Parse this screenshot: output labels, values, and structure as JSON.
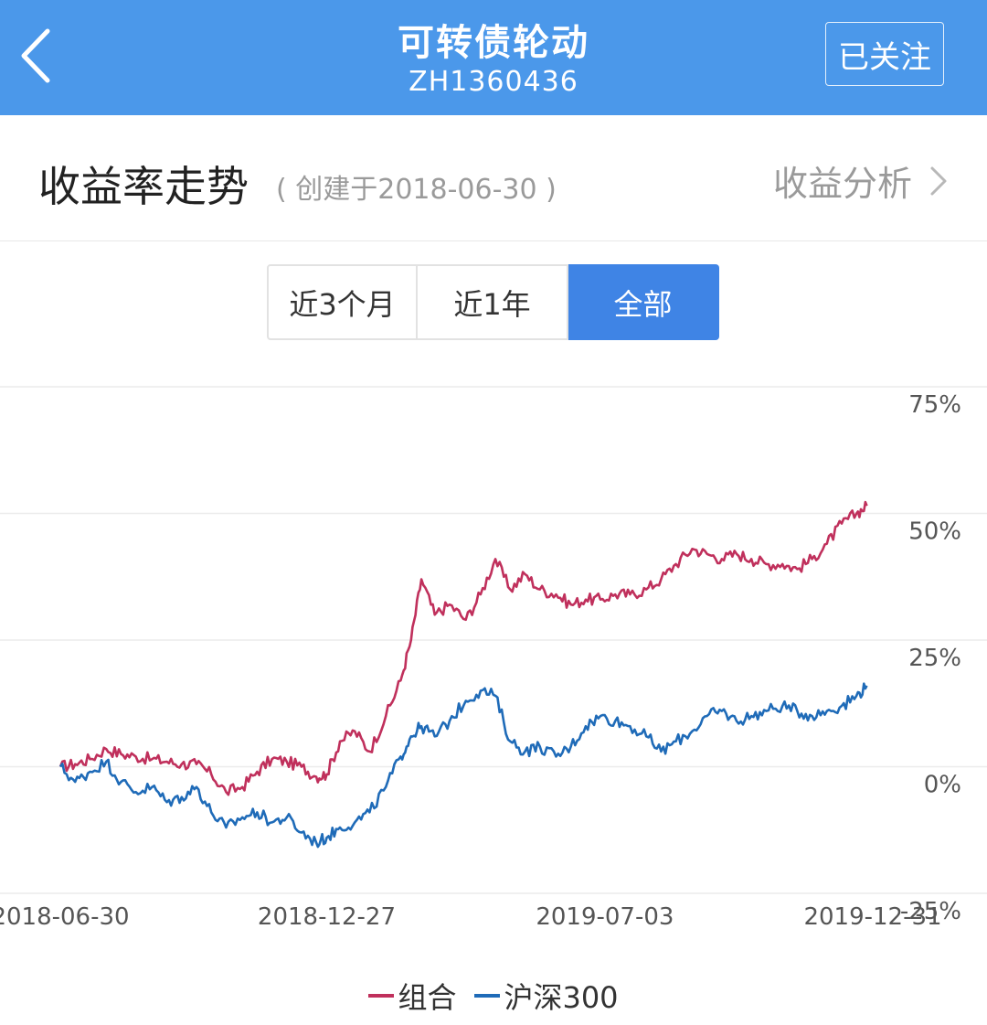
{
  "header": {
    "title": "可转债轮动",
    "subtitle": "ZH1360436",
    "follow_label": "已关注"
  },
  "section": {
    "title": "收益率走势",
    "created": "( 创建于2018-06-30 )",
    "analysis_label": "收益分析"
  },
  "range_tabs": [
    {
      "label": "近3个月",
      "active": false
    },
    {
      "label": "近1年",
      "active": false
    },
    {
      "label": "全部",
      "active": true
    }
  ],
  "icons": {
    "back": "chevron-left-icon",
    "analysis": "chevron-right-icon"
  },
  "colors": {
    "header_bg": "#4b98ea",
    "active_tab": "#3f84e5",
    "portfolio": "#c0305c",
    "benchmark": "#1f6bb8"
  },
  "chart_data": {
    "type": "line",
    "x_ticks": [
      "2018-06-30",
      "2018-12-27",
      "2019-07-03",
      "2019-12-31"
    ],
    "y_ticks": [
      "75%",
      "50%",
      "25%",
      "0%",
      "-25%"
    ],
    "ylim": [
      -25,
      75
    ],
    "xlim": [
      "2018-06-30",
      "2019-12-31"
    ],
    "grid": true,
    "legend_position": "bottom",
    "series": [
      {
        "name": "组合",
        "color": "#c0305c",
        "points": [
          [
            "2018-06-30",
            0
          ],
          [
            "2018-07-10",
            0.5
          ],
          [
            "2018-07-20",
            1.5
          ],
          [
            "2018-07-31",
            3.5
          ],
          [
            "2018-08-10",
            2.5
          ],
          [
            "2018-08-20",
            2.0
          ],
          [
            "2018-08-31",
            1.5
          ],
          [
            "2018-09-10",
            1.0
          ],
          [
            "2018-09-20",
            0.5
          ],
          [
            "2018-09-30",
            0.5
          ],
          [
            "2018-10-10",
            -1.5
          ],
          [
            "2018-10-20",
            -5
          ],
          [
            "2018-10-31",
            -4
          ],
          [
            "2018-11-10",
            -1
          ],
          [
            "2018-11-20",
            1.5
          ],
          [
            "2018-11-30",
            1
          ],
          [
            "2018-12-10",
            0
          ],
          [
            "2018-12-20",
            -2
          ],
          [
            "2018-12-27",
            -1.5
          ],
          [
            "2019-01-05",
            5
          ],
          [
            "2019-01-15",
            7
          ],
          [
            "2019-01-25",
            3
          ],
          [
            "2019-02-05",
            10
          ],
          [
            "2019-02-15",
            17
          ],
          [
            "2019-02-22",
            25
          ],
          [
            "2019-03-01",
            37
          ],
          [
            "2019-03-10",
            30
          ],
          [
            "2019-03-20",
            32
          ],
          [
            "2019-03-31",
            29
          ],
          [
            "2019-04-10",
            34
          ],
          [
            "2019-04-20",
            41
          ],
          [
            "2019-04-30",
            35
          ],
          [
            "2019-05-10",
            38
          ],
          [
            "2019-05-20",
            35
          ],
          [
            "2019-05-31",
            34
          ],
          [
            "2019-06-10",
            32
          ],
          [
            "2019-06-20",
            33
          ],
          [
            "2019-06-30",
            33
          ],
          [
            "2019-07-10",
            34
          ],
          [
            "2019-07-20",
            34
          ],
          [
            "2019-07-31",
            35
          ],
          [
            "2019-08-10",
            37
          ],
          [
            "2019-08-20",
            40
          ],
          [
            "2019-08-31",
            43
          ],
          [
            "2019-09-10",
            42
          ],
          [
            "2019-09-20",
            41
          ],
          [
            "2019-09-30",
            42
          ],
          [
            "2019-10-10",
            41
          ],
          [
            "2019-10-20",
            40
          ],
          [
            "2019-10-31",
            40
          ],
          [
            "2019-11-10",
            39
          ],
          [
            "2019-11-20",
            41
          ],
          [
            "2019-11-30",
            44
          ],
          [
            "2019-12-10",
            48
          ],
          [
            "2019-12-20",
            50
          ],
          [
            "2019-12-27",
            51.5
          ]
        ]
      },
      {
        "name": "沪深300",
        "color": "#1f6bb8",
        "points": [
          [
            "2018-06-30",
            0
          ],
          [
            "2018-07-10",
            -3
          ],
          [
            "2018-07-20",
            -1
          ],
          [
            "2018-07-31",
            1
          ],
          [
            "2018-08-10",
            -3
          ],
          [
            "2018-08-20",
            -5
          ],
          [
            "2018-08-31",
            -4
          ],
          [
            "2018-09-10",
            -7
          ],
          [
            "2018-09-20",
            -6
          ],
          [
            "2018-09-30",
            -4
          ],
          [
            "2018-10-10",
            -9
          ],
          [
            "2018-10-20",
            -12
          ],
          [
            "2018-10-31",
            -10
          ],
          [
            "2018-11-10",
            -9
          ],
          [
            "2018-11-20",
            -11
          ],
          [
            "2018-11-30",
            -10
          ],
          [
            "2018-12-10",
            -13
          ],
          [
            "2018-12-20",
            -15
          ],
          [
            "2018-12-27",
            -14
          ],
          [
            "2019-01-05",
            -12
          ],
          [
            "2019-01-15",
            -11
          ],
          [
            "2019-01-25",
            -9
          ],
          [
            "2019-02-05",
            -4
          ],
          [
            "2019-02-15",
            2
          ],
          [
            "2019-02-22",
            6
          ],
          [
            "2019-03-01",
            8
          ],
          [
            "2019-03-10",
            6
          ],
          [
            "2019-03-20",
            9
          ],
          [
            "2019-03-31",
            13
          ],
          [
            "2019-04-10",
            15
          ],
          [
            "2019-04-20",
            14
          ],
          [
            "2019-04-30",
            5
          ],
          [
            "2019-05-10",
            3
          ],
          [
            "2019-05-20",
            4
          ],
          [
            "2019-05-31",
            2
          ],
          [
            "2019-06-10",
            4
          ],
          [
            "2019-06-20",
            8
          ],
          [
            "2019-06-30",
            10
          ],
          [
            "2019-07-10",
            9
          ],
          [
            "2019-07-20",
            8
          ],
          [
            "2019-07-31",
            6
          ],
          [
            "2019-08-10",
            3
          ],
          [
            "2019-08-20",
            5
          ],
          [
            "2019-08-31",
            7
          ],
          [
            "2019-09-10",
            10
          ],
          [
            "2019-09-20",
            11
          ],
          [
            "2019-09-30",
            9
          ],
          [
            "2019-10-10",
            10
          ],
          [
            "2019-10-20",
            11
          ],
          [
            "2019-10-31",
            12
          ],
          [
            "2019-11-10",
            11
          ],
          [
            "2019-11-20",
            10
          ],
          [
            "2019-11-30",
            11
          ],
          [
            "2019-12-10",
            12
          ],
          [
            "2019-12-20",
            14
          ],
          [
            "2019-12-27",
            16
          ]
        ]
      }
    ]
  }
}
